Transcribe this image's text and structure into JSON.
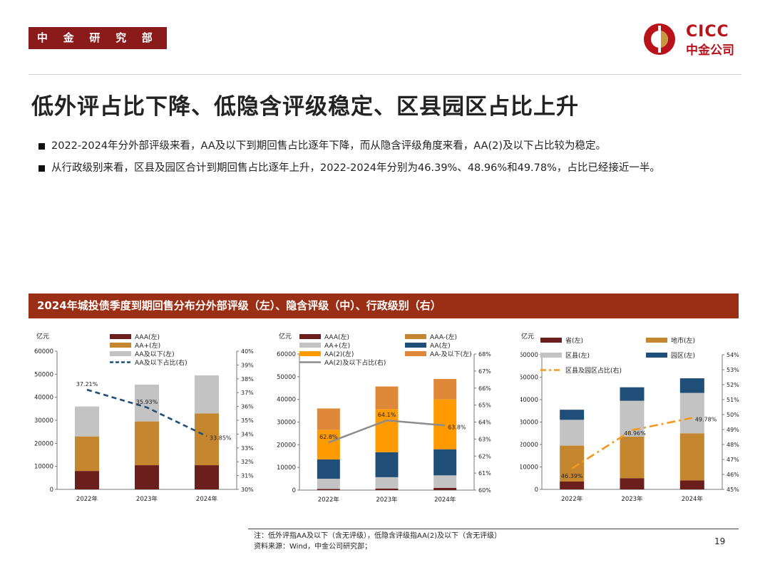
{
  "header": {
    "dept": "中 金 研 究 部",
    "logo_en": "CICC",
    "logo_cn": "中金公司",
    "brand_color": "#b8131b"
  },
  "title": "低外评占比下降、低隐含评级稳定、区县园区占比上升",
  "bullets": [
    "2022-2024年分外部评级来看，AA及以下到期回售占比逐年下降，而从隐含评级角度来看，AA(2)及以下占比较为稳定。",
    "从行政级别来看，区县及园区合计到期回售占比逐年上升，2022-2024年分别为46.39%、48.96%和49.78%，占比已经接近一半。"
  ],
  "banner": "2024年城投债季度到期回售分布分外部评级（左）、隐含评级（中）、行政级别（右）",
  "chart_data": [
    {
      "type": "bar",
      "stacked": true,
      "categories": [
        "2022年",
        "2023年",
        "2024年"
      ],
      "y_unit": "亿元",
      "ylim": [
        0,
        60000
      ],
      "y_ticks": [
        "0",
        "10000",
        "20000",
        "30000",
        "40000",
        "50000",
        "60000"
      ],
      "y2lim": [
        30,
        40
      ],
      "y2_ticks": [
        "30%",
        "31%",
        "32%",
        "33%",
        "34%",
        "35%",
        "36%",
        "37%",
        "38%",
        "39%",
        "40%"
      ],
      "series": [
        {
          "name": "AAA(左)",
          "color": "#6b1f1c",
          "values": [
            8000,
            10500,
            10500
          ]
        },
        {
          "name": "AA+(左)",
          "color": "#c4862f",
          "values": [
            15000,
            19000,
            22500
          ]
        },
        {
          "name": "AA及以下(左)",
          "color": "#c3c3c3",
          "values": [
            13000,
            16000,
            16500
          ]
        }
      ],
      "line": {
        "name": "AA及以下占比(右)",
        "color": "#1f4e79",
        "style": "dashed",
        "values": [
          37.21,
          35.93,
          33.85
        ],
        "labels": [
          "37.21%",
          "35.93%",
          "33.85%"
        ]
      }
    },
    {
      "type": "bar",
      "stacked": true,
      "categories": [
        "2022年",
        "2023年",
        "2024年"
      ],
      "y_unit": "亿元",
      "ylim": [
        0,
        60000
      ],
      "y_ticks": [
        "0",
        "10000",
        "20000",
        "30000",
        "40000",
        "50000",
        "60000"
      ],
      "y2lim": [
        60,
        68
      ],
      "y2_ticks": [
        "60%",
        "61%",
        "62%",
        "63%",
        "64%",
        "65%",
        "66%",
        "67%",
        "68%"
      ],
      "series": [
        {
          "name": "AAA(左)",
          "color": "#6b1f1c",
          "values": [
            500,
            700,
            1000
          ]
        },
        {
          "name": "AAA-(左)",
          "color": "#c4862f",
          "values": [
            0,
            0,
            0
          ]
        },
        {
          "name": "AA+(左)",
          "color": "#c3c3c3",
          "values": [
            4500,
            5000,
            5500
          ]
        },
        {
          "name": "AA(左)",
          "color": "#1f4e79",
          "values": [
            8500,
            11000,
            11500
          ]
        },
        {
          "name": "AA(2)(左)",
          "color": "#ff9a00",
          "values": [
            13000,
            19000,
            22000
          ]
        },
        {
          "name": "AA-及以下(左)",
          "color": "#e0883a",
          "values": [
            9500,
            10000,
            9000
          ]
        }
      ],
      "line": {
        "name": "AA(2)及以下占比(右)",
        "color": "#8c8c8c",
        "style": "solid",
        "values": [
          62.8,
          64.1,
          63.8
        ],
        "labels": [
          "62.8%",
          "64.1%",
          "63.8%"
        ]
      }
    },
    {
      "type": "bar",
      "stacked": true,
      "categories": [
        "2022年",
        "2023年",
        "2024年"
      ],
      "y_unit": "亿元",
      "ylim": [
        0,
        60000
      ],
      "y_ticks": [
        "0",
        "10000",
        "20000",
        "30000",
        "40000",
        "50000",
        "60000"
      ],
      "y2lim": [
        45,
        54
      ],
      "y2_ticks": [
        "45%",
        "46%",
        "47%",
        "48%",
        "49%",
        "50%",
        "51%",
        "52%",
        "53%",
        "54%"
      ],
      "series": [
        {
          "name": "省(左)",
          "color": "#6b1f1c",
          "values": [
            3500,
            5000,
            4000
          ]
        },
        {
          "name": "地市(左)",
          "color": "#c4862f",
          "values": [
            16000,
            18500,
            21000
          ]
        },
        {
          "name": "区县(左)",
          "color": "#c3c3c3",
          "values": [
            11500,
            16000,
            18000
          ]
        },
        {
          "name": "园区(左)",
          "color": "#1f4e79",
          "values": [
            4500,
            6000,
            6500
          ]
        }
      ],
      "line": {
        "name": "区县及园区占比(右)",
        "color": "#f39a1e",
        "style": "dashdot",
        "values": [
          46.39,
          48.96,
          49.78
        ],
        "labels": [
          "46.39%",
          "48.96%",
          "49.78%"
        ]
      }
    }
  ],
  "footer": {
    "note": "注：低外评指AA及以下（含无评级），低隐含评级指AA(2)及以下（含无评级）",
    "source": "资料来源：Wind，中金公司研究部；",
    "page": "19"
  }
}
